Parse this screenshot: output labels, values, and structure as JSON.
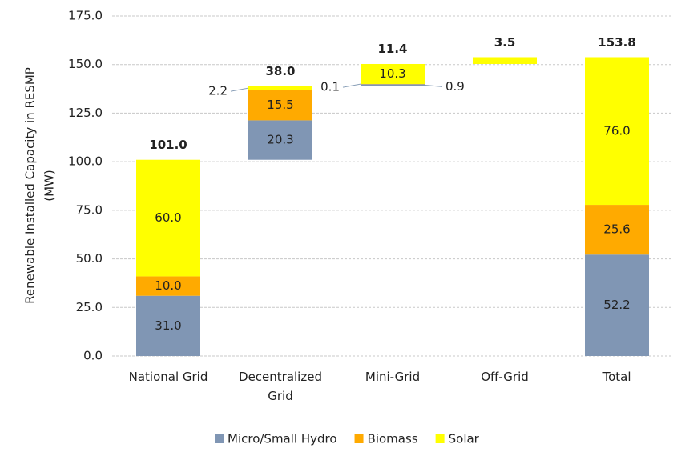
{
  "chart_data": {
    "type": "waterfall-stacked-bar",
    "ylabel": [
      "Renewable Installed Capacity in RESMP",
      "(MW)"
    ],
    "categories": [
      "National Grid",
      "Decentralized Grid",
      "Mini-Grid",
      "Off-Grid",
      "Total"
    ],
    "series": [
      {
        "name": "Micro/Small Hydro",
        "color": "#8096b4",
        "values": [
          31.0,
          20.3,
          0.9,
          null,
          52.2
        ],
        "value_labels": [
          "31.0",
          "20.3",
          "0.9",
          null,
          "52.2"
        ]
      },
      {
        "name": "Biomass",
        "color": "#ffaa00",
        "values": [
          10.0,
          15.5,
          0.1,
          null,
          25.6
        ],
        "value_labels": [
          "10.0",
          "15.5",
          "0.1",
          null,
          "25.6"
        ]
      },
      {
        "name": "Solar",
        "color": "#ffff00",
        "values": [
          60.0,
          2.2,
          10.3,
          3.5,
          76.0
        ],
        "value_labels": [
          "60.0",
          "2.2",
          "10.3",
          null,
          "76.0"
        ]
      }
    ],
    "total_values": [
      101.0,
      38.0,
      11.4,
      3.5,
      153.8
    ],
    "total_labels": [
      "101.0",
      "38.0",
      "11.4",
      "3.5",
      "153.8"
    ],
    "ylim": [
      0,
      175
    ],
    "yticks": [
      {
        "value": 0,
        "label": "0.0"
      },
      {
        "value": 25,
        "label": "25.0"
      },
      {
        "value": 50,
        "label": "50.0"
      },
      {
        "value": 75,
        "label": "75.0"
      },
      {
        "value": 100,
        "label": "100.0"
      },
      {
        "value": 125,
        "label": "125.0"
      },
      {
        "value": 150,
        "label": "150.0"
      },
      {
        "value": 175,
        "label": "175.0"
      }
    ],
    "grid": true,
    "legend": "bottom"
  }
}
